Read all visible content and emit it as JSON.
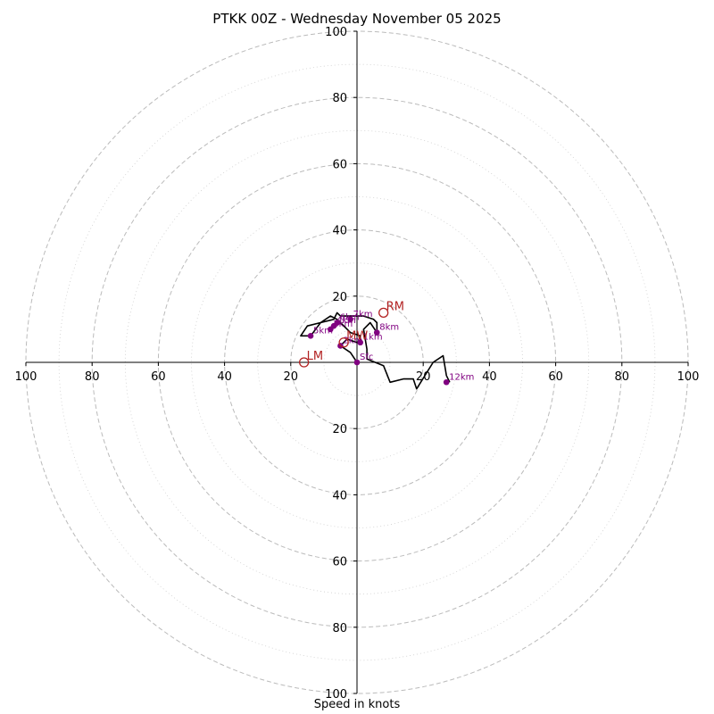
{
  "chart_data": {
    "type": "hodograph",
    "title": "PTKK 00Z - Wednesday November 05 2025",
    "xlabel": "Speed in knots",
    "rings": [
      20,
      40,
      60,
      80,
      100
    ],
    "minor_rings": [
      10,
      30,
      50,
      70,
      90
    ],
    "range": [
      -100,
      100
    ],
    "tick_labels": {
      "x": [
        {
          "value": -100,
          "text": "100"
        },
        {
          "value": -80,
          "text": "80"
        },
        {
          "value": -60,
          "text": "60"
        },
        {
          "value": -40,
          "text": "40"
        },
        {
          "value": -20,
          "text": "20"
        },
        {
          "value": 20,
          "text": "20"
        },
        {
          "value": 40,
          "text": "40"
        },
        {
          "value": 60,
          "text": "60"
        },
        {
          "value": 80,
          "text": "80"
        },
        {
          "value": 100,
          "text": "100"
        }
      ],
      "y": [
        {
          "value": 100,
          "text": "100"
        },
        {
          "value": 80,
          "text": "80"
        },
        {
          "value": 60,
          "text": "60"
        },
        {
          "value": 40,
          "text": "40"
        },
        {
          "value": 20,
          "text": "20"
        },
        {
          "value": -20,
          "text": "20"
        },
        {
          "value": -40,
          "text": "40"
        },
        {
          "value": -60,
          "text": "60"
        },
        {
          "value": -80,
          "text": "80"
        },
        {
          "value": -100,
          "text": "100"
        }
      ]
    },
    "trace": [
      [
        0,
        0
      ],
      [
        -2,
        3
      ],
      [
        -5,
        5
      ],
      [
        -3,
        7
      ],
      [
        0,
        6
      ],
      [
        1,
        6
      ],
      [
        1,
        8
      ],
      [
        -2,
        9
      ],
      [
        -4,
        11
      ],
      [
        -6,
        13
      ],
      [
        -8,
        14
      ],
      [
        -11,
        12
      ],
      [
        -14,
        8
      ],
      [
        -17,
        8
      ],
      [
        -15,
        11
      ],
      [
        -11,
        12
      ],
      [
        -7,
        13
      ],
      [
        -6,
        15
      ],
      [
        -5,
        14
      ],
      [
        -3,
        14
      ],
      [
        -1,
        14
      ],
      [
        2,
        14
      ],
      [
        5,
        13
      ],
      [
        6,
        12
      ],
      [
        6,
        9
      ],
      [
        4,
        12
      ],
      [
        2,
        10
      ],
      [
        3,
        4
      ],
      [
        3,
        1
      ],
      [
        8,
        -1
      ],
      [
        10,
        -6
      ],
      [
        14,
        -5
      ],
      [
        17,
        -5
      ],
      [
        18,
        -8
      ],
      [
        23,
        0
      ],
      [
        26,
        2
      ],
      [
        27,
        -4
      ],
      [
        28,
        -6
      ]
    ],
    "height_markers": [
      {
        "label": "Sfc",
        "u": 0,
        "v": 0
      },
      {
        "label": "1km",
        "u": 1,
        "v": 6
      },
      {
        "label": "2km",
        "u": -5,
        "v": 5
      },
      {
        "label": "3km",
        "u": -8,
        "v": 10
      },
      {
        "label": "4km",
        "u": -7,
        "v": 11
      },
      {
        "label": "5km",
        "u": -14,
        "v": 8
      },
      {
        "label": "6km",
        "u": -6,
        "v": 12
      },
      {
        "label": "7km",
        "u": -2,
        "v": 13
      },
      {
        "label": "8km",
        "u": 6,
        "v": 9
      },
      {
        "label": "12km",
        "u": 27,
        "v": -6
      }
    ],
    "storm_motions": [
      {
        "label": "RM",
        "u": 8,
        "v": 15
      },
      {
        "label": "LM",
        "u": -16,
        "v": 0
      },
      {
        "label": "MW",
        "u": -4,
        "v": 6
      }
    ],
    "colors": {
      "trace": "#000000",
      "height_markers": "#800080",
      "storm_motions": "#b22222",
      "rings": "#bbbbbb",
      "axes": "#000000"
    }
  }
}
